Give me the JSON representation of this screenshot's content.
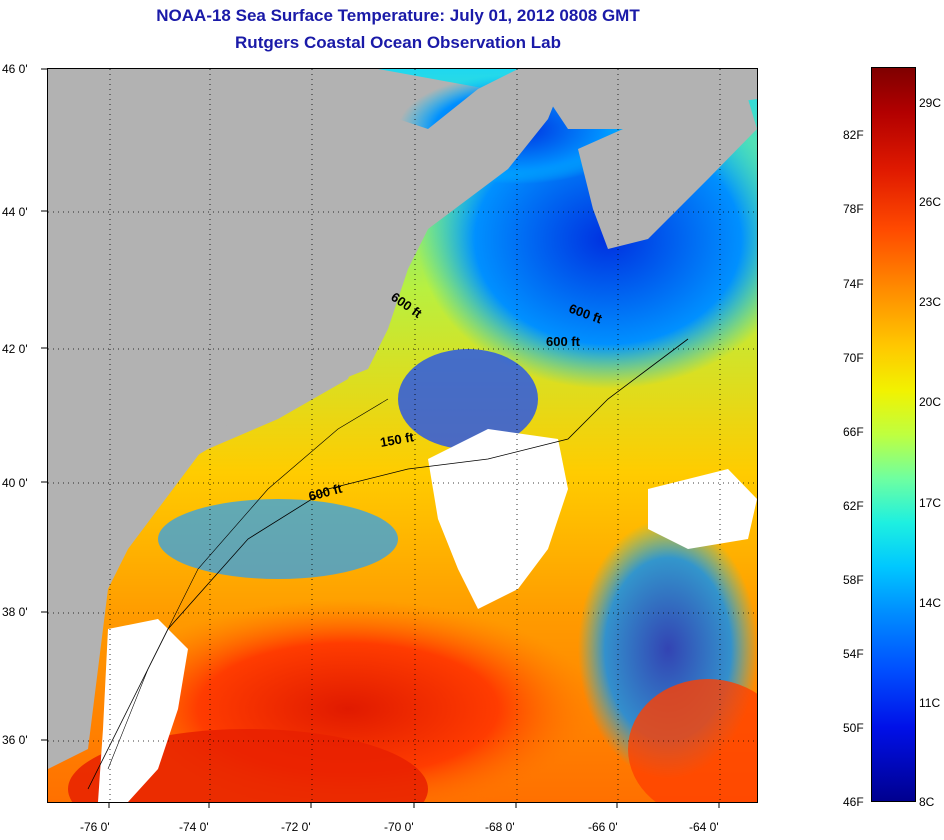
{
  "title": {
    "line1": "NOAA-18 Sea Surface Temperature:  July 01, 2012 0808 GMT",
    "line2": "Rutgers Coastal Ocean Observation Lab"
  },
  "axes": {
    "latitude_ticks": [
      "46 0'",
      "44 0'",
      "42 0'",
      "40 0'",
      "38 0'",
      "36 0'"
    ],
    "longitude_ticks": [
      "-76 0'",
      "-74 0'",
      "-72 0'",
      "-70 0'",
      "-68 0'",
      "-66 0'",
      "-64 0'"
    ]
  },
  "contour_labels": [
    "600 ft",
    "600 ft",
    "600 ft",
    "150 ft",
    "600 ft"
  ],
  "colorbar": {
    "fahrenheit_labels": [
      "82F",
      "78F",
      "74F",
      "70F",
      "66F",
      "62F",
      "58F",
      "54F",
      "50F",
      "46F"
    ],
    "celsius_labels": [
      "29C",
      "26C",
      "23C",
      "20C",
      "17C",
      "14C",
      "11C",
      "8C"
    ]
  },
  "colors": {
    "title": "#1a1aa8",
    "land": "#b2b2b2",
    "cloud": "#ffffff"
  }
}
